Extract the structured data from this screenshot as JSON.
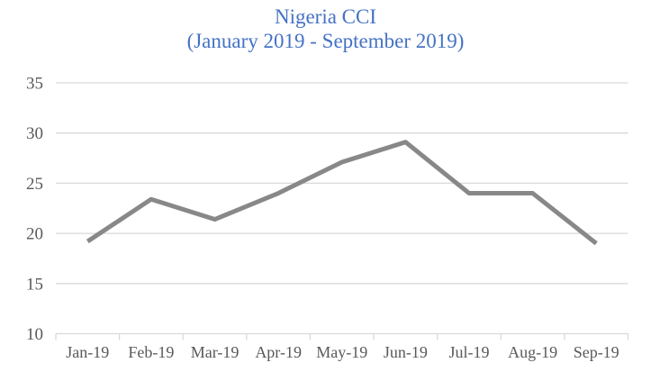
{
  "chart_data": {
    "type": "line",
    "title": "Nigeria CCI",
    "subtitle": "(January 2019 - September 2019)",
    "categories": [
      "Jan-19",
      "Feb-19",
      "Mar-19",
      "Apr-19",
      "May-19",
      "Jun-19",
      "Jul-19",
      "Aug-19",
      "Sep-19"
    ],
    "series": [
      {
        "name": "Nigeria CCI",
        "values": [
          19.2,
          23.4,
          21.4,
          24.0,
          27.1,
          29.1,
          24.0,
          24.0,
          19.0
        ]
      }
    ],
    "xlabel": "",
    "ylabel": "",
    "ylim": [
      10,
      35
    ],
    "yticks": [
      10,
      15,
      20,
      25,
      30,
      35
    ],
    "grid": "horizontal",
    "legend": "none",
    "colors": {
      "title": "#4472C4",
      "line": "#888888",
      "gridline": "#D9D9D9",
      "axis": "#D9D9D9",
      "tick_labels": "#595959",
      "background": "#FFFFFF"
    }
  }
}
